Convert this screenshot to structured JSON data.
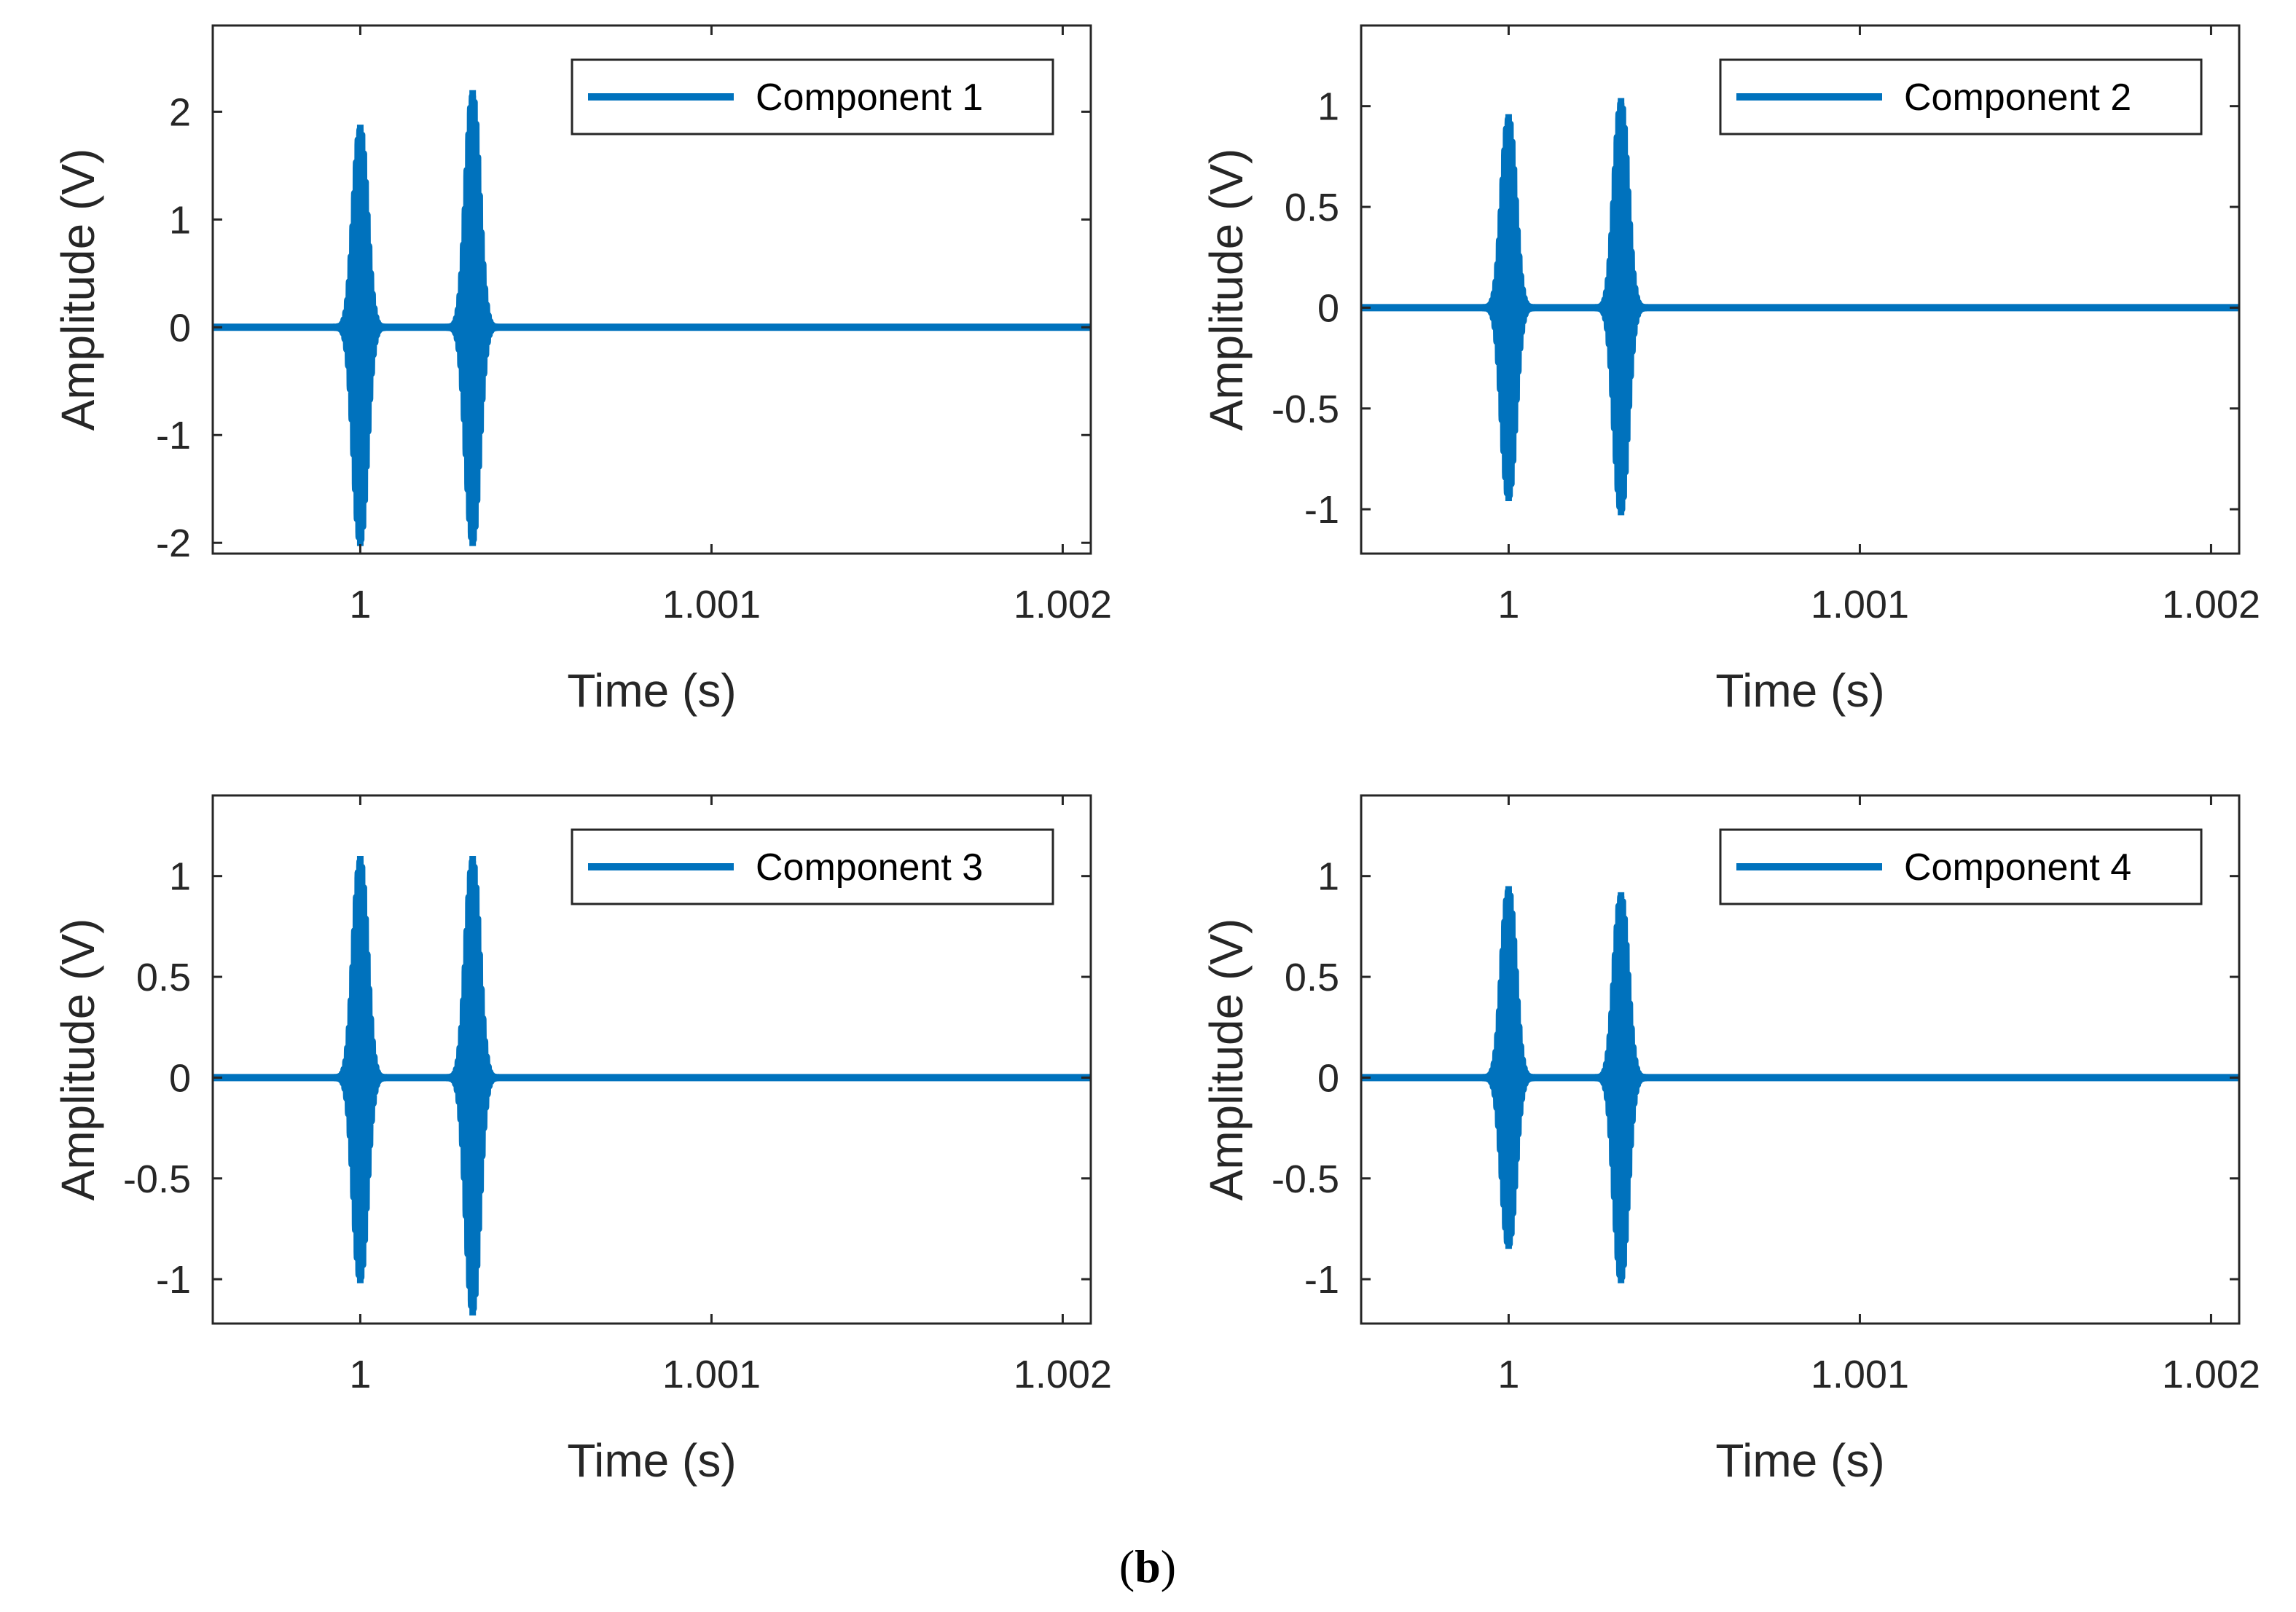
{
  "caption": {
    "open": "(",
    "letter": "b",
    "close": ")"
  },
  "colors": {
    "line": "#0072BD",
    "axes": "#262626"
  },
  "chart_data": [
    {
      "type": "line",
      "legend": "Component 1",
      "legend_position": "top-right",
      "xlabel": "Time (s)",
      "ylabel": "Amplitude (V)",
      "xlim": [
        0.99958,
        1.00208
      ],
      "ylim": [
        -2.1,
        2.8
      ],
      "xticks": [
        1,
        1.001,
        1.002
      ],
      "xtick_labels": [
        "1",
        "1.001",
        "1.002"
      ],
      "yticks": [
        -2,
        -1,
        0,
        1,
        2
      ],
      "ytick_labels": [
        "-2",
        "-1",
        "0",
        "1",
        "2"
      ],
      "grid": false,
      "bursts": [
        {
          "center": 1.0,
          "max": 1.88,
          "min": -2.03
        },
        {
          "center": 1.00032,
          "max": 2.2,
          "min": -2.03
        }
      ]
    },
    {
      "type": "line",
      "legend": "Component 2",
      "legend_position": "top-right",
      "xlabel": "Time (s)",
      "ylabel": "Amplitude (V)",
      "xlim": [
        0.99958,
        1.00208
      ],
      "ylim": [
        -1.22,
        1.4
      ],
      "xticks": [
        1,
        1.001,
        1.002
      ],
      "xtick_labels": [
        "1",
        "1.001",
        "1.002"
      ],
      "yticks": [
        -1,
        -0.5,
        0,
        0.5,
        1
      ],
      "ytick_labels": [
        "-1",
        "-0.5",
        "0",
        "0.5",
        "1"
      ],
      "grid": false,
      "bursts": [
        {
          "center": 1.0,
          "max": 0.96,
          "min": -0.96
        },
        {
          "center": 1.00032,
          "max": 1.04,
          "min": -1.03
        }
      ]
    },
    {
      "type": "line",
      "legend": "Component 3",
      "legend_position": "top-right",
      "xlabel": "Time (s)",
      "ylabel": "Amplitude (V)",
      "xlim": [
        0.99958,
        1.00208
      ],
      "ylim": [
        -1.22,
        1.4
      ],
      "xticks": [
        1,
        1.001,
        1.002
      ],
      "xtick_labels": [
        "1",
        "1.001",
        "1.002"
      ],
      "yticks": [
        -1,
        -0.5,
        0,
        0.5,
        1
      ],
      "ytick_labels": [
        "-1",
        "-0.5",
        "0",
        "0.5",
        "1"
      ],
      "grid": false,
      "bursts": [
        {
          "center": 1.0,
          "max": 1.1,
          "min": -1.02
        },
        {
          "center": 1.00032,
          "max": 1.1,
          "min": -1.18
        }
      ]
    },
    {
      "type": "line",
      "legend": "Component 4",
      "legend_position": "top-right",
      "xlabel": "Time (s)",
      "ylabel": "Amplitude (V)",
      "xlim": [
        0.99958,
        1.00208
      ],
      "ylim": [
        -1.22,
        1.4
      ],
      "xticks": [
        1,
        1.001,
        1.002
      ],
      "xtick_labels": [
        "1",
        "1.001",
        "1.002"
      ],
      "yticks": [
        -1,
        -0.5,
        0,
        0.5,
        1
      ],
      "ytick_labels": [
        "-1",
        "-0.5",
        "0",
        "0.5",
        "1"
      ],
      "grid": false,
      "bursts": [
        {
          "center": 1.0,
          "max": 0.95,
          "min": -0.85
        },
        {
          "center": 1.00032,
          "max": 0.92,
          "min": -1.02
        }
      ]
    }
  ]
}
